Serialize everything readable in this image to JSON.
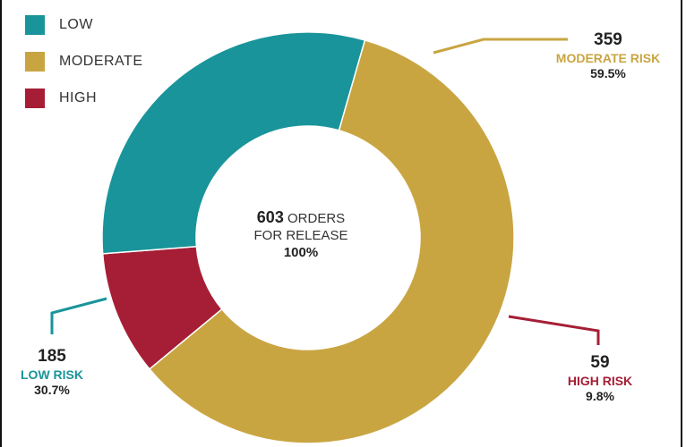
{
  "legend": [
    {
      "label": "LOW",
      "color": "#19949a"
    },
    {
      "label": "MODERATE",
      "color": "#c9a542"
    },
    {
      "label": "HIGH",
      "color": "#a51e35"
    }
  ],
  "center": {
    "total": "603",
    "total_suffix": "ORDERS",
    "line2": "FOR RELEASE",
    "pct": "100%"
  },
  "callouts": {
    "moderate": {
      "num": "359",
      "label": "MODERATE RISK",
      "pct": "59.5%"
    },
    "high": {
      "num": "59",
      "label": "HIGH RISK",
      "pct": "9.8%"
    },
    "low": {
      "num": "185",
      "label": "LOW RISK",
      "pct": "30.7%"
    }
  },
  "chart_data": {
    "type": "pie",
    "donut": true,
    "categories": [
      "MODERATE",
      "HIGH",
      "LOW"
    ],
    "values": [
      359,
      59,
      185
    ],
    "percentages": [
      59.5,
      9.8,
      30.7
    ],
    "colors": [
      "#c9a542",
      "#a51e35",
      "#19949a"
    ],
    "legend_position": "top-left"
  }
}
